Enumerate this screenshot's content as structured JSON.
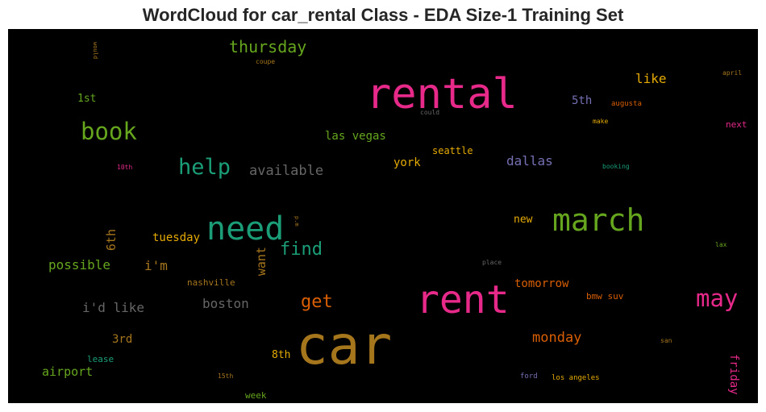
{
  "title": "WordCloud for car_rental Class - EDA Size-1 Training Set",
  "palette": {
    "pink": "#e7298a",
    "green": "#66a61e",
    "teal": "#1b9e77",
    "gold": "#a6761d",
    "orange": "#d95f02",
    "purple": "#7570b3",
    "yellow": "#e6ab02",
    "gray": "#666666"
  },
  "words": {
    "car": "car",
    "rental": "rental",
    "rent": "rent",
    "need": "need",
    "march": "march",
    "book": "book",
    "may": "may",
    "help": "help",
    "find": "find",
    "get": "get",
    "thursday": "thursday",
    "available": "available",
    "monday": "monday",
    "dallas": "dallas",
    "boston": "boston",
    "id_like": "i'd like",
    "possible": "possible",
    "las_vegas": "las vegas",
    "airport": "airport",
    "friday": "friday",
    "tuesday": "tuesday",
    "im": "i'm",
    "tomorrow": "tomorrow",
    "want": "want",
    "sixth": "6th",
    "like": "like",
    "fifth": "5th",
    "york": "york",
    "seattle": "seattle",
    "new": "new",
    "first": "1st",
    "third": "3rd",
    "eighth": "8th",
    "nashville": "nashville",
    "bmw_suv": "bmw suv",
    "next": "next",
    "lease": "lease",
    "week": "week",
    "augusta": "augusta",
    "make": "make",
    "april": "april",
    "booking": "booking",
    "lax": "lax",
    "san": "san",
    "ford": "ford",
    "los_angeles": "los angeles",
    "fifteenth": "15th",
    "tenth": "10th",
    "coupe": "coupe",
    "could": "could",
    "place": "place",
    "would": "would",
    "pm": "p.m"
  }
}
